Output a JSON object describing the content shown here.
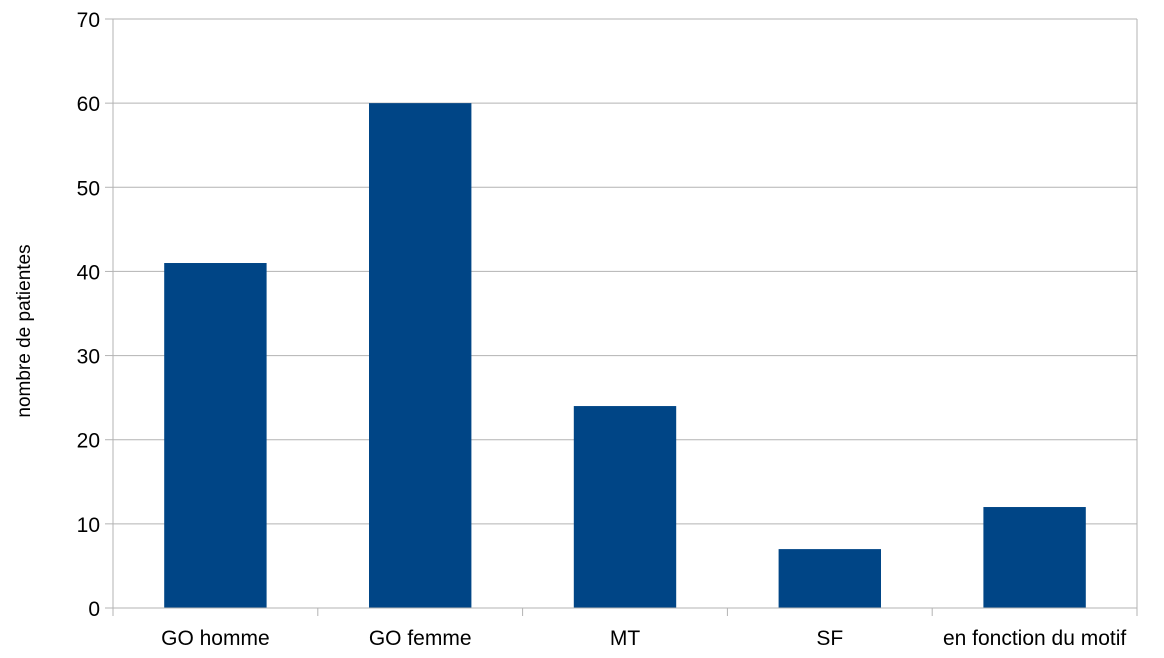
{
  "chart_data": {
    "type": "bar",
    "title": "",
    "xlabel": "",
    "ylabel": "nombre de patientes",
    "categories": [
      "GO homme",
      "GO femme",
      "MT",
      "SF",
      "en fonction du motif"
    ],
    "values": [
      41,
      60,
      24,
      7,
      12
    ],
    "ylim": [
      0,
      70
    ],
    "yticks": [
      0,
      10,
      20,
      30,
      40,
      50,
      60,
      70
    ],
    "grid": true,
    "legend": "none",
    "bar_color": "#004586"
  }
}
